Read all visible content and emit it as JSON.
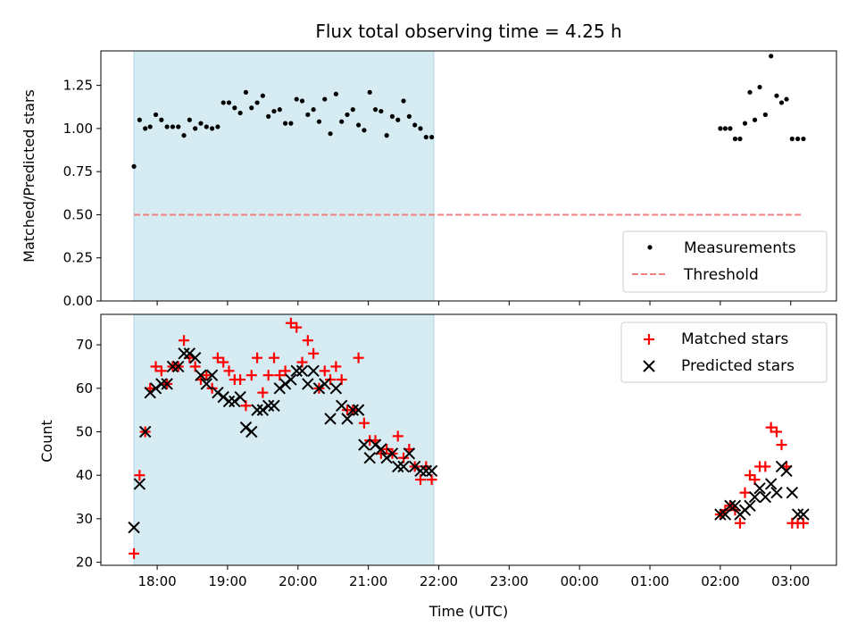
{
  "chart_data": {
    "type": "scatter",
    "title": "Flux total observing time = 4.25 h",
    "colors": {
      "measurement": "#000000",
      "threshold": "#f08080",
      "matched": "#ff0000",
      "predicted": "#000000",
      "span": "#add8e6"
    },
    "x_ticks": [
      {
        "label": "18:00",
        "h": 18
      },
      {
        "label": "19:00",
        "h": 19
      },
      {
        "label": "20:00",
        "h": 20
      },
      {
        "label": "21:00",
        "h": 21
      },
      {
        "label": "22:00",
        "h": 22
      },
      {
        "label": "23:00",
        "h": 23
      },
      {
        "label": "00:00",
        "h": 24
      },
      {
        "label": "01:00",
        "h": 25
      },
      {
        "label": "02:00",
        "h": 26
      },
      {
        "label": "03:00",
        "h": 27
      }
    ],
    "xlim": [
      17.2,
      27.65
    ],
    "xlabel": "Time (UTC)",
    "shaded_span": [
      17.67,
      21.93
    ],
    "top": {
      "ylabel": "Matched/Predicted stars",
      "ylim": [
        0,
        1.45
      ],
      "yticks": [
        "0.00",
        "0.25",
        "0.50",
        "0.75",
        "1.00",
        "1.25"
      ],
      "threshold": {
        "value": 0.5,
        "x": [
          17.67,
          27.18
        ]
      },
      "legend": {
        "measurements": "Measurements",
        "threshold": "Threshold",
        "position": "lower right"
      },
      "measurements": {
        "x": [
          17.67,
          17.75,
          17.83,
          17.9,
          17.98,
          18.06,
          18.14,
          18.22,
          18.3,
          18.38,
          18.46,
          18.54,
          18.62,
          18.7,
          18.78,
          18.86,
          18.94,
          19.02,
          19.1,
          19.18,
          19.26,
          19.34,
          19.42,
          19.5,
          19.58,
          19.66,
          19.74,
          19.82,
          19.9,
          19.98,
          20.06,
          20.14,
          20.22,
          20.3,
          20.38,
          20.46,
          20.54,
          20.62,
          20.7,
          20.78,
          20.86,
          20.94,
          21.02,
          21.1,
          21.18,
          21.26,
          21.34,
          21.42,
          21.5,
          21.58,
          21.66,
          21.74,
          21.82,
          21.9,
          26.0,
          26.07,
          26.14,
          26.21,
          26.28,
          26.35,
          26.42,
          26.49,
          26.56,
          26.64,
          26.72,
          26.8,
          26.87,
          26.94,
          27.02,
          27.1,
          27.18
        ],
        "y": [
          0.78,
          1.05,
          1.0,
          1.01,
          1.08,
          1.05,
          1.01,
          1.01,
          1.01,
          0.96,
          1.05,
          1.0,
          1.03,
          1.01,
          1.0,
          1.01,
          1.15,
          1.15,
          1.12,
          1.09,
          1.21,
          1.12,
          1.15,
          1.19,
          1.07,
          1.1,
          1.11,
          1.03,
          1.03,
          1.17,
          1.16,
          1.08,
          1.11,
          1.04,
          1.17,
          0.97,
          1.2,
          1.04,
          1.08,
          1.11,
          1.02,
          0.99,
          1.21,
          1.11,
          1.1,
          0.96,
          1.07,
          1.05,
          1.16,
          1.07,
          1.02,
          1.0,
          0.95,
          0.95,
          1.0,
          1.0,
          1.0,
          0.94,
          0.94,
          1.03,
          1.21,
          1.05,
          1.24,
          1.08,
          1.42,
          1.19,
          1.15,
          1.17,
          0.94,
          0.94,
          0.94
        ]
      }
    },
    "bottom": {
      "ylabel": "Count",
      "ylim": [
        19.3,
        77
      ],
      "yticks": [
        "20",
        "30",
        "40",
        "50",
        "60",
        "70"
      ],
      "legend": {
        "matched": "Matched stars",
        "predicted": "Predicted stars",
        "position": "upper right"
      },
      "x": [
        17.67,
        17.75,
        17.83,
        17.9,
        17.98,
        18.06,
        18.14,
        18.22,
        18.3,
        18.38,
        18.46,
        18.54,
        18.62,
        18.7,
        18.78,
        18.86,
        18.94,
        19.02,
        19.1,
        19.18,
        19.26,
        19.34,
        19.42,
        19.5,
        19.58,
        19.66,
        19.74,
        19.82,
        19.9,
        19.98,
        20.06,
        20.14,
        20.22,
        20.3,
        20.38,
        20.46,
        20.54,
        20.62,
        20.7,
        20.78,
        20.86,
        20.94,
        21.02,
        21.1,
        21.18,
        21.26,
        21.34,
        21.42,
        21.5,
        21.58,
        21.66,
        21.74,
        21.82,
        21.9,
        26.0,
        26.07,
        26.14,
        26.21,
        26.28,
        26.35,
        26.42,
        26.49,
        26.56,
        26.64,
        26.72,
        26.8,
        26.87,
        26.94,
        27.02,
        27.1,
        27.18
      ],
      "matched": [
        22,
        40,
        50,
        60,
        65,
        64,
        61,
        65,
        65,
        71,
        67,
        65,
        62,
        63,
        60,
        67,
        66,
        64,
        62,
        62,
        56,
        63,
        67,
        59,
        63,
        67,
        63,
        64,
        75,
        74,
        66,
        71,
        68,
        60,
        64,
        62,
        65,
        62,
        55,
        55,
        67,
        52,
        48,
        48,
        45,
        46,
        45,
        49,
        44,
        46,
        42,
        39,
        42,
        39,
        31,
        32,
        33,
        32,
        29,
        36,
        40,
        39,
        42,
        42,
        51,
        50,
        47,
        42,
        29,
        29,
        29
      ],
      "predicted": [
        28,
        38,
        50,
        59,
        60,
        61,
        61,
        65,
        65,
        68,
        68,
        67,
        63,
        61,
        63,
        59,
        58,
        57,
        57,
        58,
        51,
        50,
        55,
        55,
        56,
        56,
        60,
        61,
        62,
        64,
        64,
        61,
        64,
        60,
        61,
        53,
        60,
        56,
        53,
        55,
        55,
        47,
        44,
        47,
        46,
        44,
        45,
        42,
        42,
        45,
        42,
        41,
        41,
        41,
        31,
        31,
        33,
        33,
        31,
        32,
        33,
        35,
        37,
        35,
        38,
        36,
        42,
        41,
        36,
        31,
        31
      ]
    }
  }
}
